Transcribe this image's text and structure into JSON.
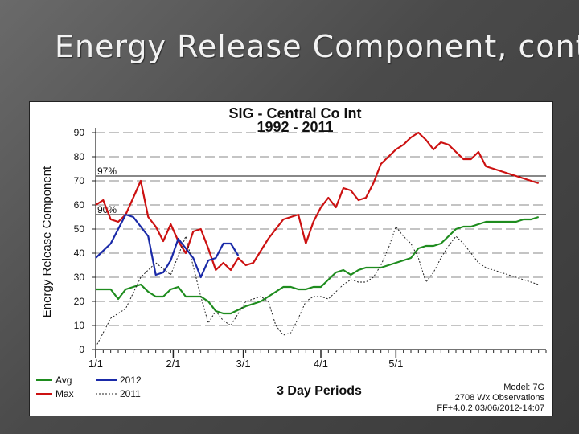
{
  "slide": {
    "title": "Energy Release Component, cont."
  },
  "chart_data": {
    "type": "line",
    "title": "SIG - Central Co Int",
    "subtitle": "1992 - 2011",
    "xlabel": "3 Day Periods",
    "ylabel": "Energy Release Component",
    "ylim": [
      0,
      90
    ],
    "yticks": [
      "0",
      "10",
      "20",
      "30",
      "40",
      "50",
      "60",
      "70",
      "80",
      "90"
    ],
    "xlim": [
      0,
      60
    ],
    "xticks": [
      {
        "label": "1/1",
        "x": 0
      },
      {
        "label": "2/1",
        "x": 10.33
      },
      {
        "label": "3/1",
        "x": 19.67
      },
      {
        "label": "4/1",
        "x": 30
      },
      {
        "label": "5/1",
        "x": 40
      }
    ],
    "reference_lines": [
      {
        "label": "97%",
        "y": 72
      },
      {
        "label": "90%",
        "y": 56
      }
    ],
    "colors": {
      "avg": "#1e8c1e",
      "max": "#cc1111",
      "y2012": "#1a2aa8",
      "y2011": "#222222"
    },
    "series": [
      {
        "name": "Avg",
        "key": "avg",
        "x": [
          0,
          2,
          3,
          4,
          6,
          7,
          8,
          9,
          10,
          11,
          12,
          13,
          14,
          15,
          16,
          17,
          18,
          20,
          21,
          22,
          23,
          24,
          25,
          26,
          27,
          28,
          29,
          30,
          31,
          32,
          33,
          34,
          35,
          36,
          37,
          38,
          39,
          40,
          41,
          42,
          43,
          44,
          45,
          46,
          47,
          48,
          49,
          50,
          51,
          52,
          53,
          54,
          55,
          56,
          57,
          58,
          59
        ],
        "values": [
          25,
          25,
          21,
          25,
          27,
          24,
          22,
          22,
          25,
          26,
          22,
          22,
          22,
          20,
          16,
          15,
          15,
          18,
          19,
          20,
          22,
          24,
          26,
          26,
          25,
          25,
          26,
          26,
          29,
          32,
          33,
          31,
          33,
          34,
          34,
          34,
          35,
          36,
          37,
          38,
          42,
          43,
          43,
          44,
          47,
          50,
          51,
          51,
          52,
          53,
          53,
          53,
          53,
          53,
          54,
          54,
          55
        ]
      },
      {
        "name": "Max",
        "key": "max",
        "x": [
          0,
          1,
          2,
          3,
          4,
          5,
          6,
          7,
          8,
          9,
          10,
          11,
          12,
          13,
          14,
          15,
          16,
          17,
          18,
          19,
          20,
          21,
          22,
          23,
          24,
          25,
          26,
          27,
          28,
          29,
          30,
          31,
          32,
          33,
          34,
          35,
          36,
          37,
          38,
          39,
          40,
          41,
          42,
          43,
          44,
          45,
          46,
          47,
          48,
          49,
          50,
          51,
          52,
          53,
          54,
          55,
          56,
          57,
          58,
          59
        ],
        "values": [
          60,
          62,
          54,
          53,
          56,
          63,
          70,
          55,
          51,
          45,
          52,
          45,
          40,
          49,
          50,
          42,
          33,
          36,
          33,
          38,
          35,
          36,
          41,
          46,
          50,
          54,
          55,
          56,
          44,
          53,
          59,
          63,
          59,
          67,
          66,
          62,
          63,
          69,
          77,
          80,
          83,
          85,
          88,
          90,
          87,
          83,
          86,
          85,
          82,
          79,
          79,
          82,
          76,
          75,
          74,
          73,
          72,
          71,
          70,
          69
        ]
      },
      {
        "name": "2012",
        "key": "y2012",
        "x": [
          0,
          2,
          4,
          5,
          7,
          8,
          9,
          10,
          11,
          12,
          13,
          14,
          15,
          16,
          17,
          18,
          19
        ],
        "values": [
          38,
          44,
          56,
          55,
          47,
          31,
          32,
          37,
          46,
          42,
          38,
          30,
          37,
          38,
          44,
          44,
          39
        ]
      },
      {
        "name": "2011",
        "key": "y2011",
        "x": [
          0,
          2,
          4,
          6,
          8,
          10,
          12,
          14,
          15,
          16,
          17,
          18,
          20,
          21,
          22,
          23,
          24,
          25,
          26,
          27,
          28,
          29,
          30,
          31,
          32,
          33,
          34,
          35,
          36,
          37,
          38,
          39,
          40,
          41,
          42,
          43,
          44,
          45,
          46,
          47,
          48,
          49,
          50,
          51,
          52,
          53,
          54,
          55,
          56,
          57,
          58,
          59
        ],
        "values": [
          1,
          13,
          17,
          30,
          36,
          31,
          47,
          22,
          11,
          16,
          12,
          10,
          20,
          21,
          22,
          20,
          10,
          6,
          7,
          13,
          20,
          22,
          22,
          21,
          24,
          27,
          29,
          28,
          28,
          30,
          35,
          42,
          51,
          47,
          44,
          38,
          28,
          32,
          38,
          43,
          47,
          44,
          40,
          36,
          34,
          33,
          32,
          31,
          30,
          29,
          28,
          27
        ]
      }
    ],
    "legend": [
      {
        "label": "Avg",
        "key": "avg"
      },
      {
        "label": "2012",
        "key": "y2012"
      },
      {
        "label": "Max",
        "key": "max"
      },
      {
        "label": "2011",
        "key": "y2011"
      }
    ],
    "footer": {
      "model": "Model: 7G",
      "observations": "2708 Wx Observations",
      "version": "FF+4.0.2 03/06/2012-14:07"
    }
  }
}
